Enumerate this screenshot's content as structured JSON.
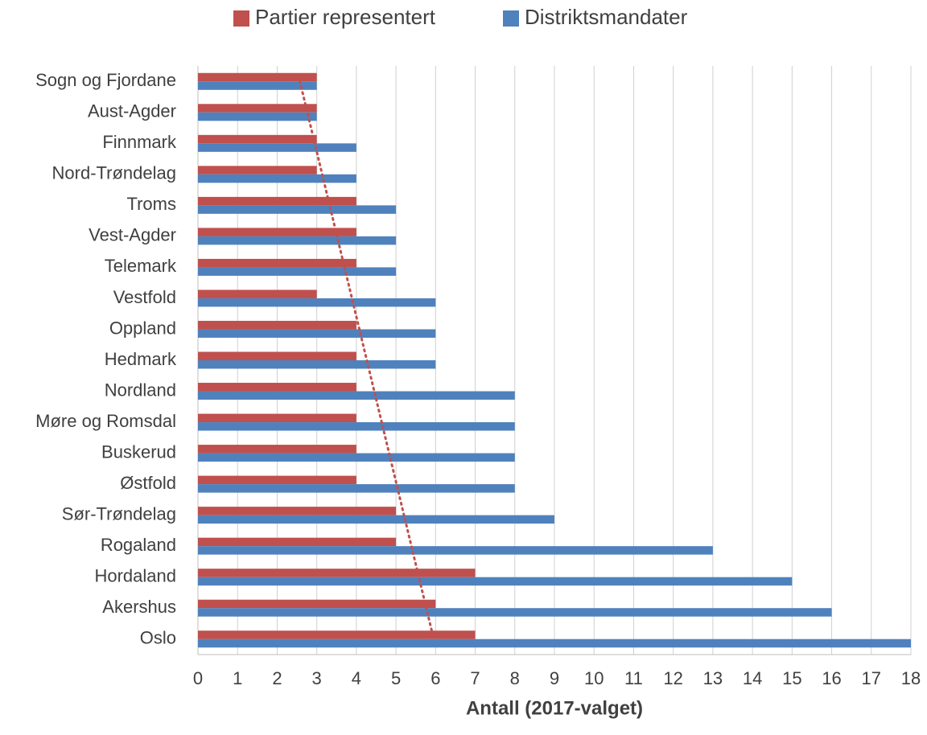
{
  "chart_data": {
    "type": "bar",
    "orientation": "horizontal",
    "categories": [
      "Sogn og Fjordane",
      "Aust-Agder",
      "Finnmark",
      "Nord-Trøndelag",
      "Troms",
      "Vest-Agder",
      "Telemark",
      "Vestfold",
      "Oppland",
      "Hedmark",
      "Nordland",
      "Møre og Romsdal",
      "Buskerud",
      "Østfold",
      "Sør-Trøndelag",
      "Rogaland",
      "Hordaland",
      "Akershus",
      "Oslo"
    ],
    "series": [
      {
        "name": "Partier representert",
        "color": "#c0504d",
        "trendline": "linear",
        "values": [
          3,
          3,
          3,
          3,
          4,
          4,
          4,
          3,
          4,
          4,
          4,
          4,
          4,
          4,
          5,
          5,
          7,
          6,
          7
        ]
      },
      {
        "name": "Distriktsmandater",
        "color": "#4f81bd",
        "values": [
          3,
          3,
          4,
          4,
          5,
          5,
          5,
          6,
          6,
          6,
          8,
          8,
          8,
          8,
          9,
          13,
          15,
          16,
          18
        ]
      }
    ],
    "x_label": "Antall (2017-valget)",
    "xlim": [
      0,
      18
    ],
    "xticks": [
      0,
      1,
      2,
      3,
      4,
      5,
      6,
      7,
      8,
      9,
      10,
      11,
      12,
      13,
      14,
      15,
      16,
      17,
      18
    ],
    "grid": true,
    "legend": "top"
  }
}
